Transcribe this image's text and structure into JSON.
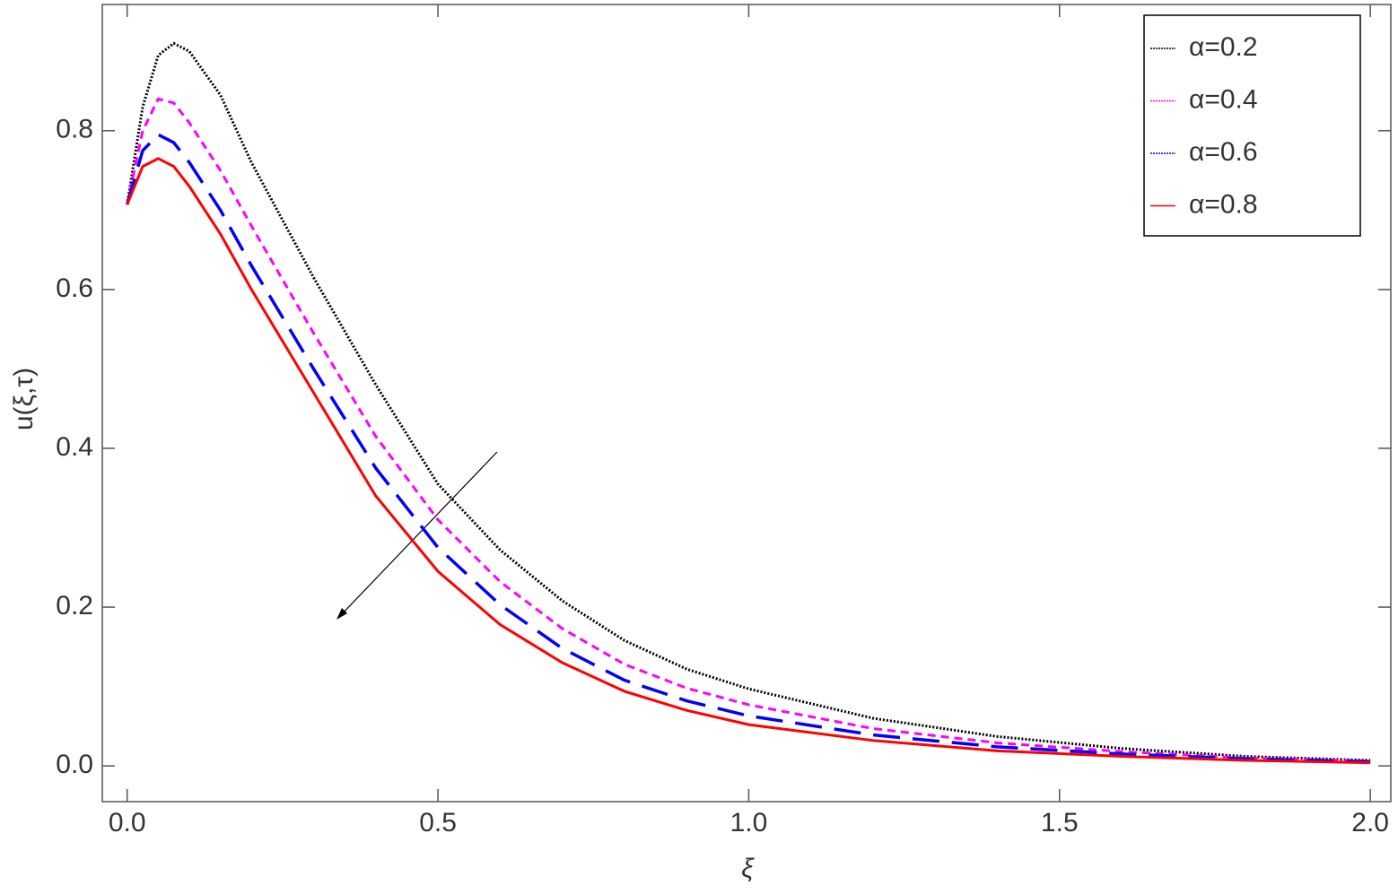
{
  "chart_data": {
    "type": "line",
    "x_label": "ξ",
    "y_label": "u(ξ,τ)",
    "x": [
      0,
      0.025,
      0.05,
      0.075,
      0.1,
      0.15,
      0.2,
      0.3,
      0.4,
      0.5,
      0.6,
      0.7,
      0.8,
      0.9,
      1.0,
      1.2,
      1.4,
      1.6,
      1.8,
      2.0
    ],
    "series": [
      {
        "name": "α=0.2",
        "color": "#000000",
        "dash": "dotted",
        "values": [
          0.707,
          0.83,
          0.895,
          0.91,
          0.9,
          0.845,
          0.76,
          0.615,
          0.48,
          0.355,
          0.272,
          0.208,
          0.158,
          0.122,
          0.097,
          0.06,
          0.037,
          0.022,
          0.012,
          0.007
        ]
      },
      {
        "name": "α=0.4",
        "color": "#ff00ff",
        "dash": "short",
        "values": [
          0.707,
          0.8,
          0.84,
          0.835,
          0.81,
          0.75,
          0.68,
          0.545,
          0.415,
          0.31,
          0.232,
          0.173,
          0.128,
          0.098,
          0.077,
          0.047,
          0.029,
          0.018,
          0.01,
          0.006
        ]
      },
      {
        "name": "α=0.6",
        "color": "#0000ff",
        "dash": "long",
        "values": [
          0.707,
          0.775,
          0.795,
          0.785,
          0.76,
          0.7,
          0.63,
          0.5,
          0.375,
          0.275,
          0.203,
          0.148,
          0.108,
          0.082,
          0.063,
          0.039,
          0.024,
          0.015,
          0.009,
          0.005
        ]
      },
      {
        "name": "α=0.8",
        "color": "#ff0000",
        "dash": "solid",
        "values": [
          0.707,
          0.755,
          0.765,
          0.755,
          0.73,
          0.67,
          0.6,
          0.47,
          0.34,
          0.245,
          0.178,
          0.13,
          0.094,
          0.07,
          0.052,
          0.032,
          0.019,
          0.012,
          0.007,
          0.004
        ]
      }
    ],
    "xlim": [
      -0.04,
      2.033
    ],
    "ylim": [
      -0.045,
      0.959
    ],
    "xticks": [
      {
        "value": 0,
        "label": "0.0"
      },
      0.5,
      {
        "value": 1,
        "label": "1.0"
      },
      1.5,
      {
        "value": 2,
        "label": "2.0"
      }
    ],
    "yticks": [
      {
        "value": 0,
        "label": "0.0"
      },
      0.2,
      0.4,
      0.6,
      0.8
    ],
    "legend": "top-right",
    "grid": false
  }
}
